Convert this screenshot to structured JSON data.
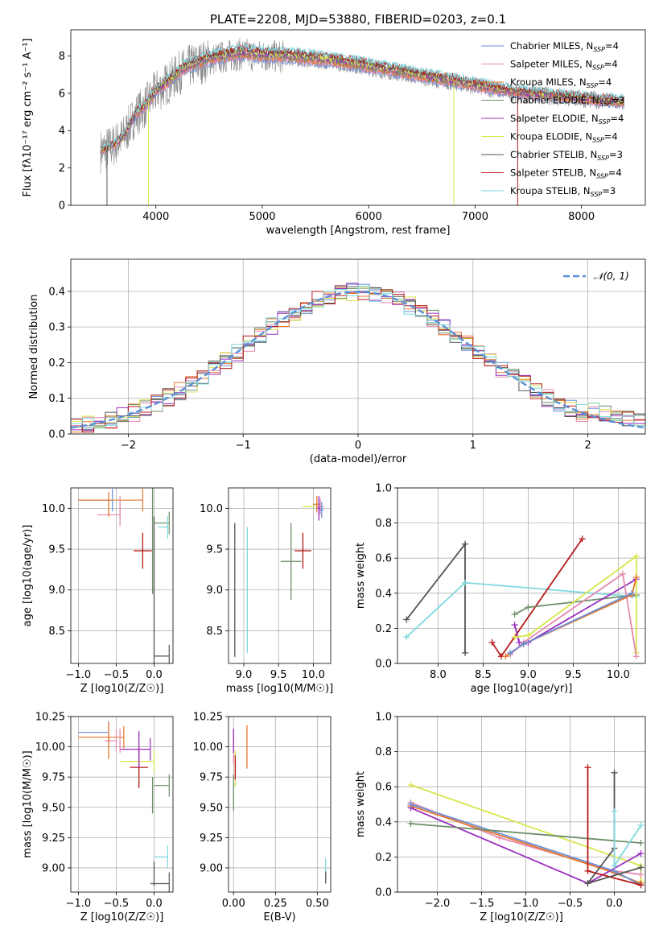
{
  "figure_title": "PLATE=2208, MJD=53880, FIBERID=0203, z=0.1",
  "colors": {
    "Chabrier MILES": "#6a8fd6",
    "Salpeter MILES": "#e58ab0",
    "Kroupa MILES": "#e8772a",
    "Chabrier ELODIE": "#6e8e6a",
    "Salpeter ELODIE": "#9a2fbf",
    "Kroupa ELODIE": "#d9e64a",
    "Chabrier STELIB": "#555555",
    "Salpeter STELIB": "#b81a1a",
    "Kroupa STELIB": "#7fd8de",
    "data": "#8a8a8a",
    "gaussian": "#5b8fd6"
  },
  "chart_data": [
    {
      "id": "spectrum",
      "type": "line",
      "xlabel": "wavelength [Angstrom, rest frame]",
      "ylabel": "Flux [fλ10⁻¹⁷ erg cm⁻² s⁻¹ A⁻¹]",
      "xlim": [
        3200,
        8600
      ],
      "ylim": [
        0,
        9.4
      ],
      "xticks": [
        4000,
        5000,
        6000,
        7000,
        8000
      ],
      "yticks": [
        0,
        2,
        4,
        6,
        8
      ],
      "grid": false,
      "legend_position": "right",
      "continuum": {
        "x": [
          3480,
          3600,
          3700,
          3800,
          3900,
          4000,
          4100,
          4200,
          4300,
          4400,
          4500,
          4600,
          4700,
          4800,
          4900,
          5000,
          5200,
          5400,
          5600,
          5800,
          6000,
          6200,
          6400,
          6600,
          6800,
          7000,
          7200,
          7400,
          7600,
          7800,
          8000,
          8200,
          8400
        ],
        "y": [
          2.9,
          3.2,
          3.7,
          4.8,
          5.3,
          6.1,
          6.5,
          7.0,
          7.4,
          7.6,
          7.8,
          7.9,
          8.0,
          8.1,
          8.05,
          8.0,
          7.95,
          7.85,
          7.75,
          7.6,
          7.4,
          7.2,
          7.0,
          6.8,
          6.6,
          6.4,
          6.2,
          6.0,
          5.9,
          5.8,
          5.7,
          5.6,
          5.5
        ]
      },
      "series": [
        {
          "name": "Chabrier MILES",
          "legend": "Chabrier MILES, N_SSP=4"
        },
        {
          "name": "Salpeter MILES",
          "legend": "Salpeter MILES, N_SSP=4"
        },
        {
          "name": "Kroupa MILES",
          "legend": "Kroupa MILES, N_SSP=4"
        },
        {
          "name": "Chabrier ELODIE",
          "legend": "Chabrier ELODIE, N_SSP=3"
        },
        {
          "name": "Salpeter ELODIE",
          "legend": "Salpeter ELODIE, N_SSP=4"
        },
        {
          "name": "Kroupa ELODIE",
          "legend": "Kroupa ELODIE, N_SSP=4"
        },
        {
          "name": "Chabrier STELIB",
          "legend": "Chabrier STELIB, N_SSP=3"
        },
        {
          "name": "Salpeter STELIB",
          "legend": "Salpeter STELIB, N_SSP=4"
        },
        {
          "name": "Kroupa STELIB",
          "legend": "Kroupa STELIB, N_SSP=3"
        }
      ]
    },
    {
      "id": "residuals",
      "type": "line",
      "xlabel": "(data-model)/error",
      "ylabel": "Normed distribution",
      "xlim": [
        -2.5,
        2.5
      ],
      "ylim": [
        0,
        0.49
      ],
      "xticks": [
        -2,
        -1,
        0,
        1,
        2
      ],
      "yticks": [
        0.0,
        0.1,
        0.2,
        0.3,
        0.4
      ],
      "grid": true,
      "legend": "𝒩(0, 1)",
      "legend_position": "top-right",
      "bin_width": 0.1,
      "bins_from": -2.5,
      "bins_to": 2.5
    },
    {
      "id": "z-age",
      "type": "scatter",
      "xlabel": "Z [log10(Z/Z☉)]",
      "ylabel": "age  [log10(age/yr)]",
      "xlim": [
        -1.1,
        0.25
      ],
      "ylim": [
        8.1,
        10.25
      ],
      "xticks": [
        -1.0,
        -0.5,
        0.0
      ],
      "yticks": [
        8.5,
        9.0,
        9.5,
        10.0
      ],
      "grid": true,
      "boxes": [
        {
          "name": "Chabrier MILES",
          "x": [
            -1.0,
            -0.55
          ],
          "y": 10.1,
          "err_x": 0.0,
          "err_y": 0.0
        },
        {
          "name": "Salpeter MILES",
          "x": [
            -0.75,
            -0.45
          ],
          "y": 9.92,
          "err_x": 0.0,
          "err_y": 0.08
        },
        {
          "name": "Kroupa MILES",
          "x": [
            -1.0,
            -0.15
          ],
          "y": 10.1,
          "err_x": 0.0,
          "err_y": 0.0
        },
        {
          "name": "Chabrier ELODIE",
          "x": [
            0.0,
            0.2
          ],
          "y": 9.82,
          "err_x": 0.0,
          "err_y": 0.0
        },
        {
          "name": "Chabrier STELIB",
          "x": [
            0.0,
            0.2
          ],
          "y": 8.19,
          "err_x": 0.0,
          "err_y": 0.0
        },
        {
          "name": "Kroupa STELIB",
          "x": [
            0.05,
            0.18
          ],
          "y": 9.77,
          "err_x": 0.0,
          "err_y": 0.0
        }
      ],
      "points": [
        {
          "name": "Salpeter STELIB",
          "x": -0.15,
          "y": 9.48,
          "ex": 0.12,
          "ey": 0.22
        },
        {
          "name": "Chabrier ELODIE",
          "x": -0.02,
          "y": 9.6,
          "ex": 0.0,
          "ey": 0.65
        },
        {
          "name": "Chabrier STELIB",
          "x": 0.0,
          "y": 9.0,
          "ex": 0.0,
          "ey": 0.9
        },
        {
          "name": "Kroupa MILES",
          "x": -0.6,
          "y": 10.05,
          "ex": 0.0,
          "ey": 0.15
        },
        {
          "name": "Salpeter MILES",
          "x": -0.45,
          "y": 10.0,
          "ex": 0.0,
          "ey": 0.15
        }
      ]
    },
    {
      "id": "mass-age",
      "type": "scatter",
      "xlabel": "mass [log10(M/M☉)]",
      "ylabel": "",
      "xlim": [
        8.78,
        10.25
      ],
      "ylim": [
        8.1,
        10.25
      ],
      "xticks": [
        9.0,
        9.5,
        10.0
      ],
      "yticks": [
        8.5,
        9.0,
        9.5,
        10.0
      ],
      "grid": true,
      "points": [
        {
          "name": "Salpeter STELIB",
          "x": 9.85,
          "y": 9.48,
          "ex": 0.12,
          "ey": 0.22
        },
        {
          "name": "Chabrier ELODIE",
          "x": 9.68,
          "y": 9.35,
          "ex": 0.15,
          "ey": 0.47
        },
        {
          "name": "Chabrier STELIB",
          "x": 8.87,
          "y": 9.0,
          "ex": 0.0,
          "ey": 0.82
        },
        {
          "name": "Kroupa STELIB",
          "x": 9.05,
          "y": 9.0,
          "ex": 0.0,
          "ey": 0.77
        },
        {
          "name": "Kroupa ELODIE",
          "x": 9.95,
          "y": 10.02,
          "ex": 0.1,
          "ey": 0.0
        },
        {
          "name": "Kroupa MILES",
          "x": 10.05,
          "y": 10.05,
          "ex": 0.05,
          "ey": 0.1
        },
        {
          "name": "Salpeter MILES",
          "x": 10.1,
          "y": 10.02,
          "ex": 0.05,
          "ey": 0.1
        },
        {
          "name": "Salpeter ELODIE",
          "x": 10.08,
          "y": 10.0,
          "ex": 0.02,
          "ey": 0.15
        },
        {
          "name": "Chabrier MILES",
          "x": 10.12,
          "y": 9.98,
          "ex": 0.03,
          "ey": 0.1
        }
      ]
    },
    {
      "id": "age-weight",
      "type": "line",
      "xlabel": "age  [log10(age/yr)]",
      "ylabel": "mass weight",
      "xlim": [
        7.55,
        10.3
      ],
      "ylim": [
        0,
        1.0
      ],
      "xticks": [
        8.0,
        8.5,
        9.0,
        9.5,
        10.0
      ],
      "yticks": [
        0.0,
        0.2,
        0.4,
        0.6,
        0.8,
        1.0
      ],
      "grid": true,
      "series": [
        {
          "name": "Chabrier STELIB",
          "x": [
            7.65,
            8.3,
            8.3
          ],
          "y": [
            0.25,
            0.68,
            0.06
          ]
        },
        {
          "name": "Kroupa STELIB",
          "x": [
            7.65,
            8.3,
            10.2
          ],
          "y": [
            0.15,
            0.46,
            0.38
          ]
        },
        {
          "name": "Salpeter STELIB",
          "x": [
            8.6,
            8.7,
            9.6
          ],
          "y": [
            0.12,
            0.04,
            0.71
          ]
        },
        {
          "name": "Chabrier ELODIE",
          "x": [
            8.85,
            9.0,
            10.2
          ],
          "y": [
            0.28,
            0.32,
            0.39
          ]
        },
        {
          "name": "Salpeter ELODIE",
          "x": [
            8.85,
            8.9,
            9.0,
            10.2
          ],
          "y": [
            0.22,
            0.12,
            0.12,
            0.48
          ]
        },
        {
          "name": "Kroupa ELODIE",
          "x": [
            8.85,
            9.0,
            10.2,
            10.2
          ],
          "y": [
            0.15,
            0.16,
            0.61,
            0.06
          ]
        },
        {
          "name": "Salpeter MILES",
          "x": [
            8.8,
            8.95,
            10.05,
            10.2
          ],
          "y": [
            0.05,
            0.12,
            0.51,
            0.04
          ]
        },
        {
          "name": "Kroupa MILES",
          "x": [
            8.75,
            8.95,
            10.15,
            10.2
          ],
          "y": [
            0.04,
            0.11,
            0.39,
            0.49
          ]
        },
        {
          "name": "Chabrier MILES",
          "x": [
            8.8,
            8.95,
            10.15
          ],
          "y": [
            0.06,
            0.11,
            0.4
          ]
        }
      ]
    },
    {
      "id": "z-mass",
      "type": "scatter",
      "xlabel": "Z [log10(Z/Z☉)]",
      "ylabel": "mass [log10(M/M☉)]",
      "xlim": [
        -1.1,
        0.25
      ],
      "ylim": [
        8.8,
        10.25
      ],
      "xticks": [
        -1.0,
        -0.5,
        0.0
      ],
      "yticks": [
        9.0,
        9.25,
        9.5,
        9.75,
        10.0,
        10.25
      ],
      "grid": true,
      "boxes": [
        {
          "name": "Chabrier MILES",
          "x": [
            -1.0,
            -0.6
          ],
          "y": 10.12
        },
        {
          "name": "Kroupa MILES",
          "x": [
            -1.0,
            -0.4
          ],
          "y": 10.08
        },
        {
          "name": "Salpeter MILES",
          "x": [
            -0.65,
            -0.5
          ],
          "y": 10.05
        },
        {
          "name": "Salpeter ELODIE",
          "x": [
            -0.45,
            -0.05
          ],
          "y": 9.98
        },
        {
          "name": "Kroupa ELODIE",
          "x": [
            -0.45,
            0.0
          ],
          "y": 9.88
        },
        {
          "name": "Chabrier ELODIE",
          "x": [
            0.0,
            0.2
          ],
          "y": 9.68
        },
        {
          "name": "Kroupa STELIB",
          "x": [
            0.0,
            0.18
          ],
          "y": 9.09
        },
        {
          "name": "Chabrier STELIB",
          "x": [
            -0.05,
            0.2
          ],
          "y": 8.87
        }
      ],
      "points": [
        {
          "name": "Salpeter STELIB",
          "x": -0.2,
          "y": 9.83,
          "ex": 0.12,
          "ey": 0.17
        },
        {
          "name": "Chabrier ELODIE",
          "x": -0.02,
          "y": 9.6,
          "ex": 0.0,
          "ey": 0.15
        },
        {
          "name": "Chabrier STELIB",
          "x": 0.0,
          "y": 8.95,
          "ex": 0.0,
          "ey": 0.1
        },
        {
          "name": "Kroupa MILES",
          "x": -0.6,
          "y": 10.05,
          "ex": 0.0,
          "ey": 0.15
        },
        {
          "name": "Salpeter MILES",
          "x": -0.45,
          "y": 10.05,
          "ex": 0.0,
          "ey": 0.1
        },
        {
          "name": "Salpeter ELODIE",
          "x": -0.2,
          "y": 9.98,
          "ex": 0.0,
          "ey": 0.15
        }
      ]
    },
    {
      "id": "ebv-mass",
      "type": "scatter",
      "xlabel": "E(B-V)",
      "ylabel": "",
      "xlim": [
        -0.03,
        0.58
      ],
      "ylim": [
        8.8,
        10.25
      ],
      "xticks": [
        0.0,
        0.25,
        0.5
      ],
      "yticks": [
        9.0,
        9.25,
        9.5,
        9.75,
        10.0,
        10.25
      ],
      "grid": true,
      "points": [
        {
          "name": "Salpeter MILES",
          "x": 0.0,
          "y": 10.0,
          "ex": 0.0,
          "ey": 0.14
        },
        {
          "name": "Salpeter ELODIE",
          "x": 0.0,
          "y": 10.05,
          "ex": 0.0,
          "ey": 0.1
        },
        {
          "name": "Kroupa MILES",
          "x": 0.08,
          "y": 10.0,
          "ex": 0.0,
          "ey": 0.18
        },
        {
          "name": "Kroupa ELODIE",
          "x": 0.01,
          "y": 9.82,
          "ex": 0.0,
          "ey": 0.15
        },
        {
          "name": "Chabrier ELODIE",
          "x": 0.0,
          "y": 9.62,
          "ex": 0.0,
          "ey": 0.15
        },
        {
          "name": "Salpeter STELIB",
          "x": 0.01,
          "y": 9.83,
          "ex": 0.0,
          "ey": 0.1
        },
        {
          "name": "Kroupa STELIB",
          "x": 0.55,
          "y": 9.0,
          "ex": 0.0,
          "ey": 0.08
        },
        {
          "name": "Chabrier STELIB",
          "x": 0.55,
          "y": 8.92,
          "ex": 0.0,
          "ey": 0.05
        }
      ]
    },
    {
      "id": "z-weight",
      "type": "line",
      "xlabel": "Z [log10(Z/Z☉)]",
      "ylabel": "mass weight",
      "xlim": [
        -2.45,
        0.35
      ],
      "ylim": [
        0,
        1.0
      ],
      "xticks": [
        -2.0,
        -1.5,
        -1.0,
        -0.5,
        0.0
      ],
      "yticks": [
        0.0,
        0.2,
        0.4,
        0.6,
        0.8,
        1.0
      ],
      "grid": true,
      "series": [
        {
          "name": "Kroupa ELODIE",
          "x": [
            -2.3,
            0.3,
            0.3
          ],
          "y": [
            0.61,
            0.15,
            0.06
          ]
        },
        {
          "name": "Salpeter MILES",
          "x": [
            -2.3,
            -1.3,
            0.0,
            0.3
          ],
          "y": [
            0.51,
            0.31,
            0.12,
            0.1
          ]
        },
        {
          "name": "Kroupa MILES",
          "x": [
            -2.3,
            0.0,
            0.3
          ],
          "y": [
            0.49,
            0.11,
            0.05
          ]
        },
        {
          "name": "Salpeter ELODIE",
          "x": [
            -2.3,
            -0.3,
            0.3
          ],
          "y": [
            0.48,
            0.05,
            0.22
          ]
        },
        {
          "name": "Chabrier MILES",
          "x": [
            -2.3,
            0.0,
            0.3
          ],
          "y": [
            0.5,
            0.12,
            0.04
          ]
        },
        {
          "name": "Chabrier ELODIE",
          "x": [
            -2.3,
            0.3
          ],
          "y": [
            0.39,
            0.28
          ]
        },
        {
          "name": "Salpeter STELIB",
          "x": [
            -0.3,
            -0.3,
            0.3
          ],
          "y": [
            0.71,
            0.12,
            0.04
          ]
        },
        {
          "name": "Chabrier STELIB",
          "x": [
            0.0,
            0.0,
            -0.3,
            0.3
          ],
          "y": [
            0.68,
            0.25,
            0.05,
            0.14
          ]
        },
        {
          "name": "Kroupa STELIB",
          "x": [
            0.0,
            0.0,
            0.3
          ],
          "y": [
            0.46,
            0.15,
            0.38
          ]
        }
      ]
    }
  ]
}
